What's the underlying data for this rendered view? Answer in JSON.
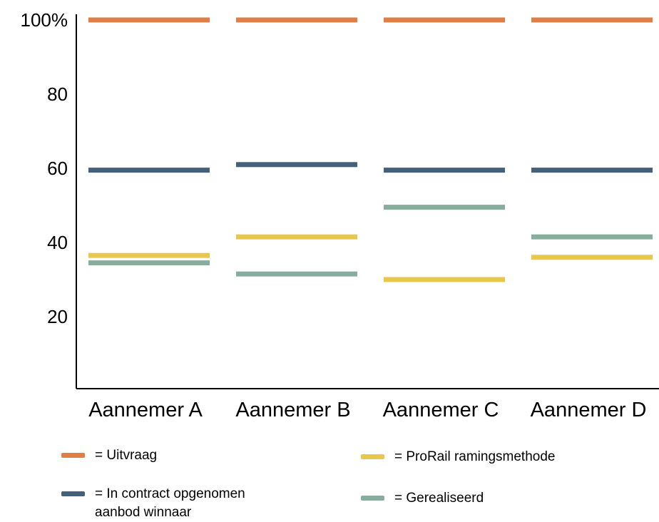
{
  "chart_data": {
    "type": "bar",
    "y_unit": "%",
    "yticks": [
      "100%",
      "80",
      "60",
      "40",
      "20"
    ],
    "ytick_values": [
      100,
      80,
      60,
      40,
      20
    ],
    "ylim": [
      0,
      100
    ],
    "grid": false,
    "categories": [
      "Aannemer A",
      "Aannemer B",
      "Aannemer C",
      "Aannemer D"
    ],
    "series": [
      {
        "key": "uitvraag",
        "color": "#E07F45",
        "values": [
          100,
          100,
          100,
          100
        ]
      },
      {
        "key": "contract",
        "color": "#45607A",
        "values": [
          59.5,
          61,
          59.5,
          59.5
        ]
      },
      {
        "key": "prorail",
        "color": "#E8C84A",
        "values": [
          36.5,
          41.5,
          30,
          36
        ]
      },
      {
        "key": "gerealiseerd",
        "color": "#87AE9C",
        "values": [
          34.5,
          31.5,
          49.5,
          41.5
        ]
      }
    ],
    "legend": {
      "placement": "bottom",
      "items": [
        {
          "key": "uitvraag",
          "label": "= Uitvraag",
          "color": "#E07F45"
        },
        {
          "key": "prorail",
          "label": "= ProRail ramingsmethode",
          "color": "#E8C84A"
        },
        {
          "key": "contract",
          "label": "= In contract opgenomen\naanbod winnaar",
          "color": "#45607A"
        },
        {
          "key": "gerealiseerd",
          "label": "  = Gerealiseerd",
          "color": "#87AE9C"
        }
      ]
    }
  }
}
